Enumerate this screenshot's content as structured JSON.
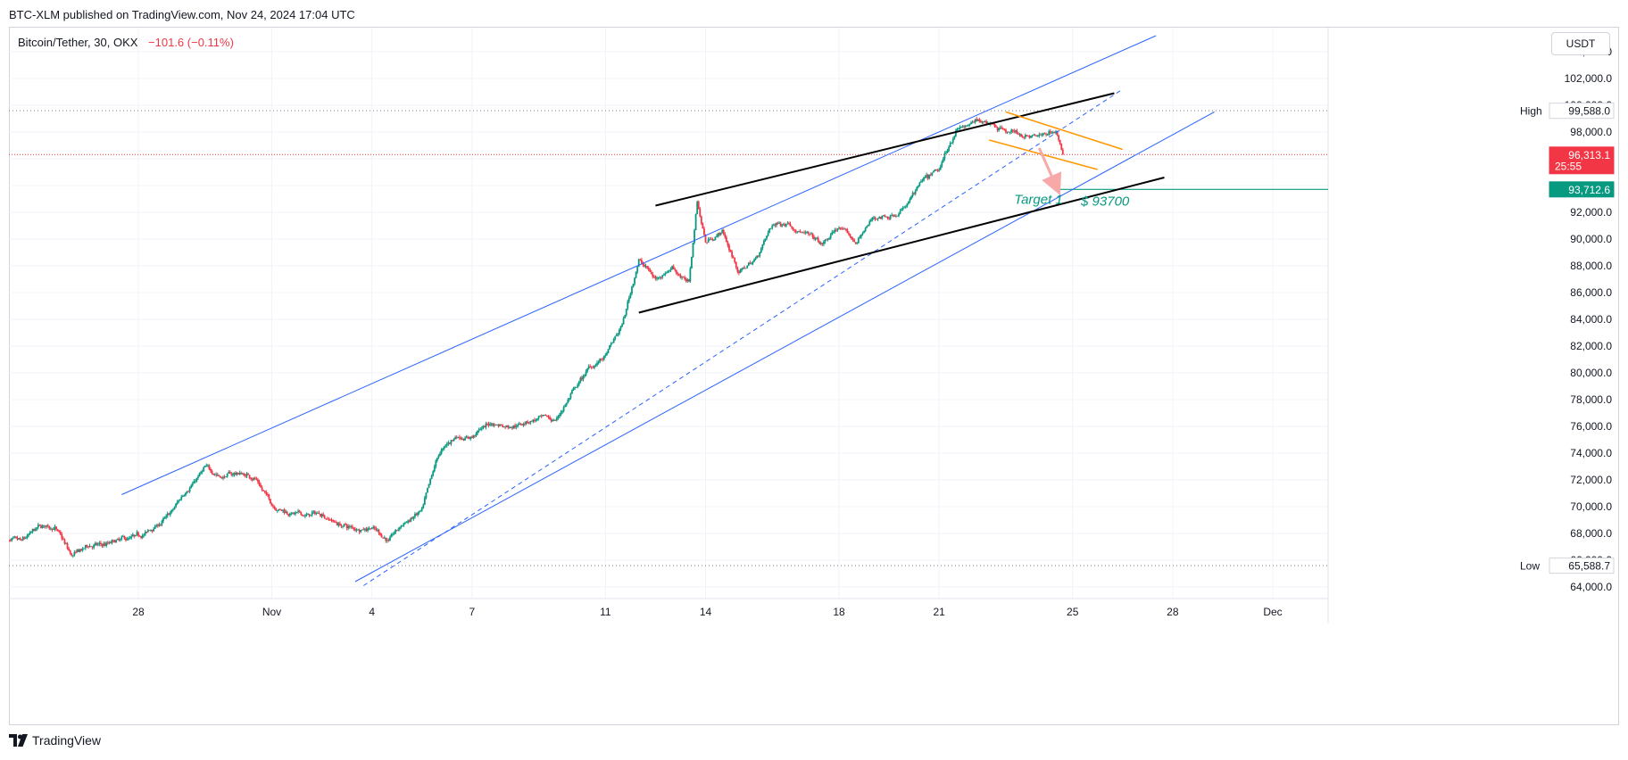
{
  "header": {
    "publisher_text": "BTC-XLM published on TradingView.com, Nov 24, 2024 17:04 UTC"
  },
  "legend": {
    "symbol": "Bitcoin/Tether, 30, OKX",
    "change": "−101.6 (−0.11%)"
  },
  "currency_button": "USDT",
  "footer": {
    "brand": "TradingView"
  },
  "colors": {
    "up": "#089981",
    "down": "#f23645",
    "channel": "#2962ff",
    "wedge": "#000000",
    "flag": "#ff9800",
    "target": "#089981",
    "last_price_bg": "#f23645",
    "arrow": "#f7a8a8"
  },
  "chart_data": {
    "type": "candlestick",
    "symbol": "Bitcoin/Tether",
    "interval": "30",
    "exchange": "OKX",
    "y_axis_ticks": [
      64000,
      66000,
      68000,
      70000,
      72000,
      74000,
      76000,
      78000,
      80000,
      82000,
      84000,
      86000,
      88000,
      90000,
      92000,
      94000,
      96000,
      98000,
      100000,
      102000,
      104000
    ],
    "y_tick_labels": [
      "64,000.0",
      "66,000.0",
      "68,000.0",
      "70,000.0",
      "72,000.0",
      "74,000.0",
      "76,000.0",
      "78,000.0",
      "80,000.0",
      "82,000.0",
      "84,000.0",
      "86,000.0",
      "88,000.0",
      "90,000.0",
      "92,000.0",
      "94,000.0",
      "96,000.0",
      "98,000.0",
      "100,000.0",
      "102,000.0",
      "104,000.0"
    ],
    "ylim": [
      63500,
      104800
    ],
    "x_tick_labels": [
      "28",
      "Nov",
      "4",
      "7",
      "11",
      "14",
      "18",
      "21",
      "25",
      "28",
      "Dec"
    ],
    "x_tick_dates": [
      "2024-10-28",
      "2024-11-01",
      "2024-11-04",
      "2024-11-07",
      "2024-11-11",
      "2024-11-14",
      "2024-11-18",
      "2024-11-21",
      "2024-11-25",
      "2024-11-28",
      "2024-12-01"
    ],
    "price_path": [
      [
        "2024-10-24 00:00",
        67500
      ],
      [
        "2024-10-24 12:00",
        67200
      ],
      [
        "2024-10-25 00:00",
        68300
      ],
      [
        "2024-10-25 12:00",
        68500
      ],
      [
        "2024-10-26 00:00",
        66200
      ],
      [
        "2024-10-26 12:00",
        67000
      ],
      [
        "2024-10-27 00:00",
        67100
      ],
      [
        "2024-10-27 12:00",
        67400
      ],
      [
        "2024-10-28 00:00",
        67600
      ],
      [
        "2024-10-28 12:00",
        68400
      ],
      [
        "2024-10-29 00:00",
        69500
      ],
      [
        "2024-10-29 12:00",
        71500
      ],
      [
        "2024-10-30 00:00",
        72800
      ],
      [
        "2024-10-30 12:00",
        72300
      ],
      [
        "2024-10-31 00:00",
        72500
      ],
      [
        "2024-10-31 12:00",
        72200
      ],
      [
        "2024-11-01 00:00",
        70200
      ],
      [
        "2024-11-01 12:00",
        69600
      ],
      [
        "2024-11-02 00:00",
        69300
      ],
      [
        "2024-11-02 12:00",
        69500
      ],
      [
        "2024-11-03 00:00",
        68700
      ],
      [
        "2024-11-03 12:00",
        68300
      ],
      [
        "2024-11-04 00:00",
        68600
      ],
      [
        "2024-11-04 12:00",
        67500
      ],
      [
        "2024-11-05 00:00",
        68800
      ],
      [
        "2024-11-05 12:00",
        69600
      ],
      [
        "2024-11-06 00:00",
        73800
      ],
      [
        "2024-11-06 12:00",
        75200
      ],
      [
        "2024-11-07 00:00",
        75300
      ],
      [
        "2024-11-07 12:00",
        76200
      ],
      [
        "2024-11-08 00:00",
        76100
      ],
      [
        "2024-11-08 12:00",
        76300
      ],
      [
        "2024-11-09 00:00",
        76600
      ],
      [
        "2024-11-09 12:00",
        76400
      ],
      [
        "2024-11-10 00:00",
        78500
      ],
      [
        "2024-11-10 12:00",
        80300
      ],
      [
        "2024-11-11 00:00",
        81200
      ],
      [
        "2024-11-11 12:00",
        83500
      ],
      [
        "2024-11-12 00:00",
        88500
      ],
      [
        "2024-11-12 12:00",
        87000
      ],
      [
        "2024-11-13 00:00",
        88000
      ],
      [
        "2024-11-13 12:00",
        86700
      ],
      [
        "2024-11-13 18:00",
        92800
      ],
      [
        "2024-11-14 00:00",
        89800
      ],
      [
        "2024-11-14 12:00",
        90600
      ],
      [
        "2024-11-15 00:00",
        87500
      ],
      [
        "2024-11-15 12:00",
        88500
      ],
      [
        "2024-11-16 00:00",
        91000
      ],
      [
        "2024-11-16 12:00",
        91300
      ],
      [
        "2024-11-17 00:00",
        90400
      ],
      [
        "2024-11-17 12:00",
        89500
      ],
      [
        "2024-11-18 00:00",
        90900
      ],
      [
        "2024-11-18 12:00",
        89700
      ],
      [
        "2024-11-19 00:00",
        91500
      ],
      [
        "2024-11-19 12:00",
        91800
      ],
      [
        "2024-11-20 00:00",
        92500
      ],
      [
        "2024-11-20 12:00",
        94200
      ],
      [
        "2024-11-21 00:00",
        95000
      ],
      [
        "2024-11-21 12:00",
        98200
      ],
      [
        "2024-11-22 00:00",
        98600
      ],
      [
        "2024-11-22 12:00",
        98900
      ],
      [
        "2024-11-23 00:00",
        98200
      ],
      [
        "2024-11-23 12:00",
        97800
      ],
      [
        "2024-11-24 00:00",
        97600
      ],
      [
        "2024-11-24 12:00",
        98100
      ],
      [
        "2024-11-24 17:00",
        96313
      ]
    ],
    "high": {
      "label": "High",
      "value": 99588.0,
      "value_text": "99,588.0"
    },
    "low": {
      "label": "Low",
      "value": 65588.7,
      "value_text": "65,588.7"
    },
    "last_price": {
      "value": 96313.1,
      "value_text": "96,313.1",
      "countdown": "25:55"
    },
    "target": {
      "value": 93712.6,
      "value_text": "93,712.6",
      "label": "Target 1",
      "annotation": "$ 93700"
    },
    "drawings": {
      "channel_upper": [
        [
          "2024-10-27 12:00",
          70900
        ],
        [
          "2024-11-27 12:00",
          105200
        ]
      ],
      "channel_lower": [
        [
          "2024-11-03 12:00",
          64400
        ],
        [
          "2024-11-29 06:00",
          99500
        ]
      ],
      "channel_mid_dashed": [
        [
          "2024-11-03 18:00",
          64100
        ],
        [
          "2024-11-26 12:00",
          101200
        ]
      ],
      "wedge_upper": [
        [
          "2024-11-12 12:00",
          92500
        ],
        [
          "2024-11-26 06:00",
          100900
        ]
      ],
      "wedge_lower": [
        [
          "2024-11-12 00:00",
          84500
        ],
        [
          "2024-11-27 18:00",
          94600
        ]
      ],
      "flag_upper": [
        [
          "2024-11-23 00:00",
          99500
        ],
        [
          "2024-11-26 12:00",
          96700
        ]
      ],
      "flag_lower": [
        [
          "2024-11-22 12:00",
          97400
        ],
        [
          "2024-11-25 18:00",
          95200
        ]
      ],
      "target_arrow": [
        [
          "2024-11-24 00:00",
          96800
        ],
        [
          "2024-11-24 12:00",
          94000
        ]
      ]
    }
  }
}
